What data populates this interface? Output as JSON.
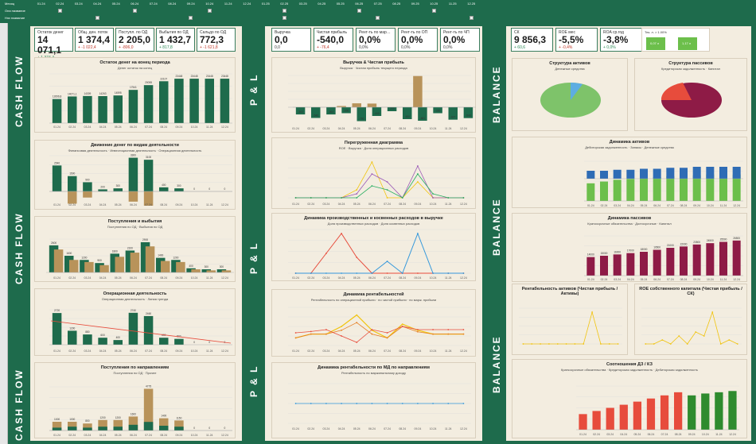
{
  "header": {
    "row_labels": [
      "Месяц",
      "Она название",
      "Нэх название"
    ],
    "months": [
      "01.24",
      "02.24",
      "03.24",
      "04.24",
      "05.24",
      "06.24",
      "07.24",
      "08.24",
      "09.24",
      "10.24",
      "11.24",
      "12.24",
      "01.25",
      "02.25",
      "03.25",
      "04.25",
      "05.25",
      "06.25",
      "07.25",
      "08.25",
      "09.25",
      "10.25",
      "11.25",
      "12.25"
    ]
  },
  "sections": {
    "cf": "CASH FLOW",
    "pl": "P & L",
    "bal": "BALANCE"
  },
  "cf_kpis": [
    {
      "title": "Остаток денег",
      "value": "14 071,1",
      "delta": "+ 1 374,4",
      "color": "#2e8b57"
    },
    {
      "title": "Общ. ден. поток",
      "value": "1 374,4",
      "delta": "+ -1 022,4",
      "color": "#c0392b"
    },
    {
      "title": "Поступл. по ОД",
      "value": "2 205,0",
      "delta": "+ -806,0",
      "color": "#c0392b"
    },
    {
      "title": "Выбытия по ОД",
      "value": "1 432,7",
      "delta": "+ 817,8",
      "color": "#2e8b57"
    },
    {
      "title": "Сальдо по ОД",
      "value": "772,3",
      "delta": "+ -1 621,8",
      "color": "#c0392b"
    }
  ],
  "pl_kpis": [
    {
      "title": "Выручка",
      "value": "0,0",
      "delta": "0,0",
      "color": "#333"
    },
    {
      "title": "Чистая прибыль",
      "value": "-540,0",
      "delta": "+ -76,4",
      "color": "#c0392b"
    },
    {
      "title": "Рент-ть по мар…",
      "value": "0,0%",
      "delta": "0,0%",
      "color": "#333"
    },
    {
      "title": "Рент-ть по ОП",
      "value": "0,0%",
      "delta": "0,0%",
      "color": "#333"
    },
    {
      "title": "Рент-ть по ЧП",
      "value": "0,0%",
      "delta": "0,0%",
      "color": "#333"
    }
  ],
  "bal_kpis": [
    {
      "title": "СК",
      "value": "9 856,3",
      "delta": "+ 60,6",
      "color": "#2e8b57"
    },
    {
      "title": "ROE мес",
      "value": "-5,5%",
      "delta": "+ -0,4%",
      "color": "#c0392b"
    },
    {
      "title": "ROA ср.год",
      "value": "-3,8%",
      "delta": "+ 0,0%",
      "color": "#2e8b57"
    }
  ],
  "bal_mini": {
    "label": "Тек. л.",
    "label2": "Тек. л. > 1.00%",
    "v1": "0,07 л",
    "v2": "1,17 л"
  },
  "cf_charts": [
    {
      "title": "Остаток денег на конец периода",
      "legend": "Денег остаток на конец"
    },
    {
      "title": "Движение денег по видам деятельности",
      "legend": "Финансовая деятельность · Инвестиционная деятельность · Операционная деятельность"
    },
    {
      "title": "Поступления и выбытия",
      "legend": "Поступления по ОД · Выбытия по ОД"
    },
    {
      "title": "Операционная деятельность",
      "legend": "Операционная деятельность · Линия тренда"
    },
    {
      "title": "Поступления по направлениям",
      "legend": "Поступления по ОД · Прочее"
    }
  ],
  "pl_charts": [
    {
      "title": "Выручка & Чистая прибыль",
      "legend": "Выручка · Чистая прибыль текущего периода"
    },
    {
      "title": "Перегруженная диаграмма",
      "legend": "ROE · Выручка · Доля операционных расходов"
    },
    {
      "title": "Динамика производственных и косвенных расходов в выручке",
      "legend": "Доля производственных расходов · Доля косвенных расходов"
    },
    {
      "title": "Динамика рентабельностей",
      "legend": "Рентабельность по операционной прибыли · по чистой прибыли · по марж. прибыли"
    },
    {
      "title": "Динамика рентабельности по МД по направлениям",
      "legend": "Рентабельность по маржинальному доходу"
    }
  ],
  "bal_charts": [
    {
      "title": "Структура активов",
      "legend": "Денежные средства"
    },
    {
      "title": "Структура пассивов",
      "legend": "Кредиторская задолженность · Капитал"
    },
    {
      "title": "Динамика активов",
      "legend": "Дебиторская задолженность · Запасы · Денежные средства"
    },
    {
      "title": "Динамика пассивов",
      "legend": "Краткосрочные обязательства · Долгосрочные · Капитал"
    },
    {
      "title": "Рентабельность активов (Чистая прибыль / Активы)",
      "legend": ""
    },
    {
      "title": "ROE собственного капитала (Чистая прибыль / СК)",
      "legend": ""
    },
    {
      "title": "Соотношения ДЗ / КЗ",
      "legend": "Краткосрочные обязательства · Кредиторская задолженность · Дебиторская задолженность"
    }
  ],
  "x_ticks": [
    "01.24",
    "02.24",
    "03.24",
    "04.24",
    "05.24",
    "06.24",
    "07.24",
    "08.24",
    "09.24",
    "10.24",
    "11.24",
    "12.24"
  ],
  "chart_data": [
    {
      "type": "bar",
      "title": "Остаток денег на конец периода",
      "categories": [
        "01.24",
        "02.24",
        "03.24",
        "04.24",
        "05.24",
        "06.24",
        "07.24",
        "08.24",
        "09.24",
        "10.24",
        "11.24",
        "12.24"
      ],
      "values": [
        12696.8,
        14071.1,
        14309.0,
        14263.0,
        14595.0,
        17541.0,
        20055.0,
        22107.0,
        23448.0,
        23448.0,
        23448.0,
        23448.0
      ]
    },
    {
      "type": "bar",
      "title": "Поступления по направлениям",
      "categories": [
        "01.24",
        "02.24",
        "03.24",
        "04.24",
        "05.24",
        "06.24",
        "07.24",
        "08.24",
        "09.24",
        "10.24",
        "11.24",
        "12.24"
      ],
      "values": [
        1000,
        1000,
        800,
        1200,
        1200,
        1600,
        4775,
        1400,
        1150,
        0,
        0,
        0
      ]
    },
    {
      "type": "bar",
      "title": "Динамика пассивов",
      "categories": [
        "01.24",
        "02.24",
        "03.24",
        "04.24",
        "05.24",
        "06.24",
        "07.24",
        "08.24",
        "09.24",
        "10.24",
        "11.24",
        "12.24"
      ],
      "values": [
        14000,
        15000,
        16000,
        17000,
        18000,
        19500,
        21000,
        22000,
        23500,
        24500,
        25500,
        26500
      ]
    }
  ]
}
